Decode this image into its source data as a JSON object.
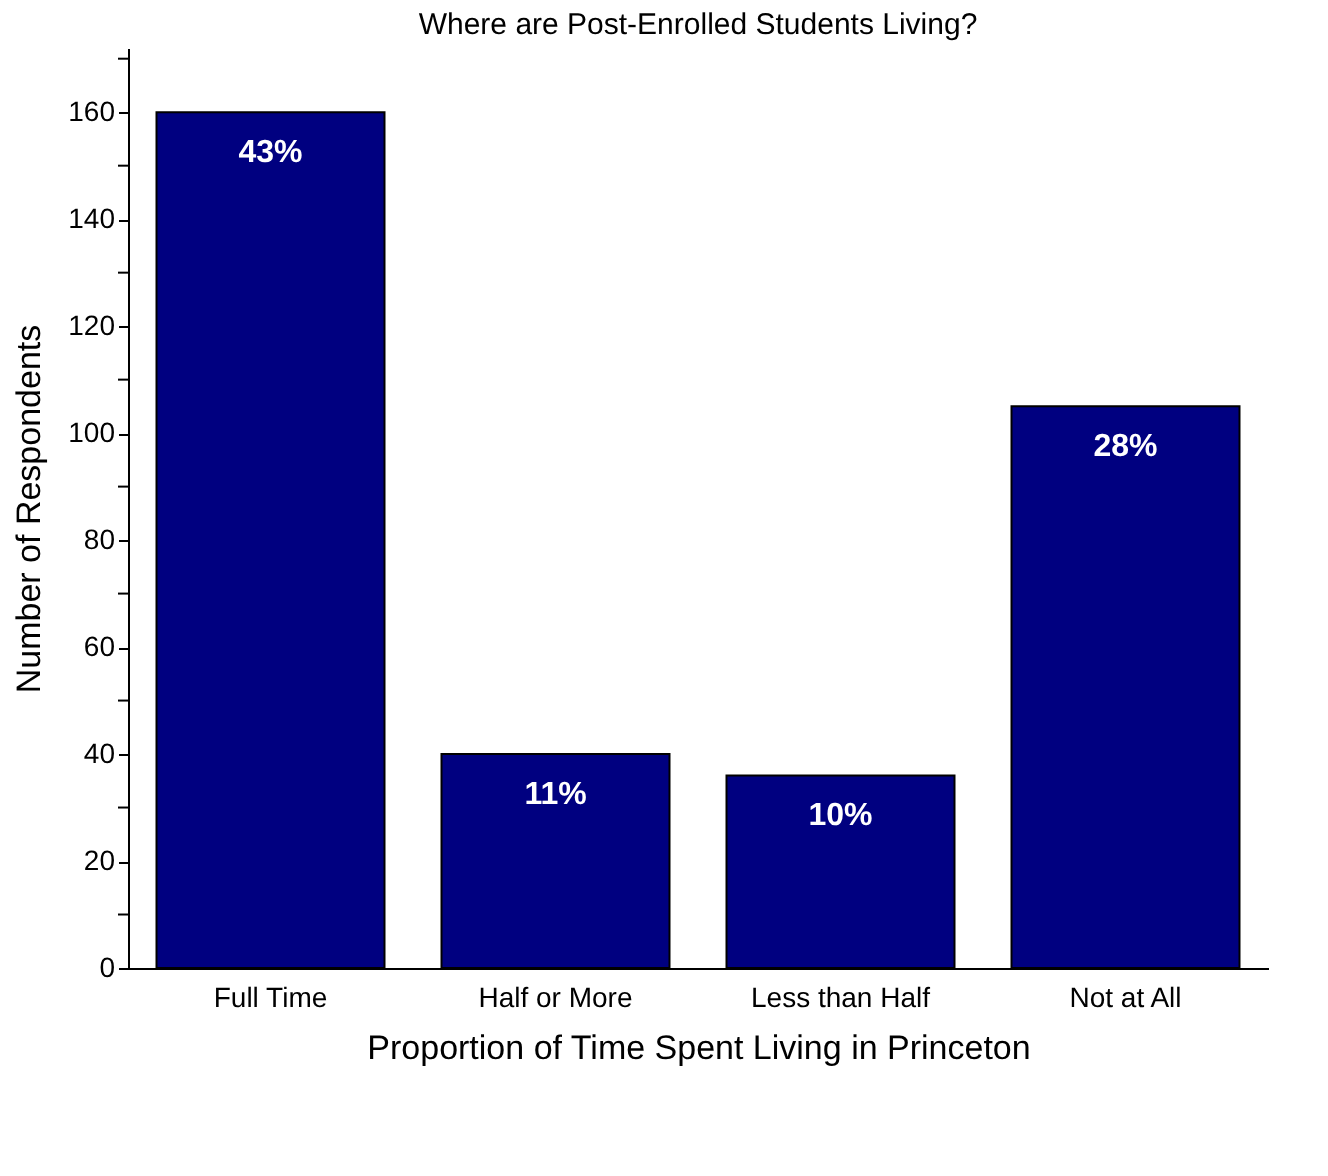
{
  "chart_data": {
    "type": "bar",
    "title": "Where are Post-Enrolled Students Living?",
    "xlabel": "Proportion of Time Spent Living in Princeton",
    "ylabel": "Number of Respondents",
    "categories": [
      "Full Time",
      "Half or More",
      "Less than Half",
      "Not at All"
    ],
    "values": [
      160,
      40,
      36,
      105
    ],
    "annotations": [
      {
        "text": "43%",
        "x": "Full Time",
        "y": 160
      },
      {
        "text": "11%",
        "x": "Half or More",
        "y": 40
      },
      {
        "text": "10%",
        "x": "Less than Half",
        "y": 36
      },
      {
        "text": "28%",
        "x": "Not at All",
        "y": 105
      }
    ],
    "color": "#000080",
    "ylim": [
      0,
      172
    ],
    "yticks": [
      0,
      {
        "value": 10,
        "label": null
      },
      20,
      {
        "value": 30,
        "label": null
      },
      40,
      {
        "value": 50,
        "label": null
      },
      60,
      {
        "value": 70,
        "label": null
      },
      80,
      {
        "value": 90,
        "label": null
      },
      100,
      {
        "value": 110,
        "label": null
      },
      120,
      {
        "value": 130,
        "label": null
      },
      140,
      {
        "value": 150,
        "label": null
      },
      160,
      {
        "value": 170,
        "label": null
      }
    ],
    "grid": false
  }
}
